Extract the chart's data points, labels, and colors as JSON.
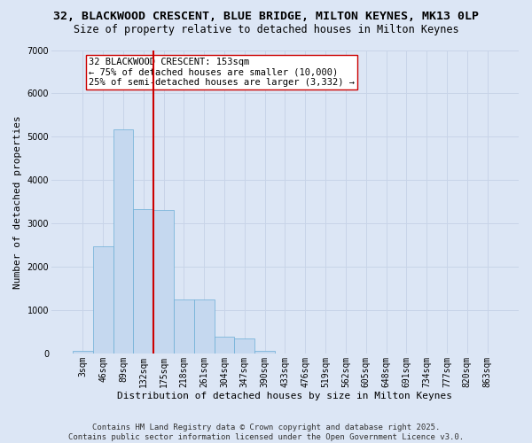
{
  "title_line1": "32, BLACKWOOD CRESCENT, BLUE BRIDGE, MILTON KEYNES, MK13 0LP",
  "title_line2": "Size of property relative to detached houses in Milton Keynes",
  "xlabel": "Distribution of detached houses by size in Milton Keynes",
  "ylabel": "Number of detached properties",
  "categories": [
    "3sqm",
    "46sqm",
    "89sqm",
    "132sqm",
    "175sqm",
    "218sqm",
    "261sqm",
    "304sqm",
    "347sqm",
    "390sqm",
    "433sqm",
    "476sqm",
    "519sqm",
    "562sqm",
    "605sqm",
    "648sqm",
    "691sqm",
    "734sqm",
    "777sqm",
    "820sqm",
    "863sqm"
  ],
  "values": [
    55,
    2480,
    5180,
    3340,
    3300,
    1250,
    1250,
    390,
    340,
    50,
    0,
    0,
    0,
    0,
    0,
    0,
    0,
    0,
    0,
    0,
    0
  ],
  "bar_color": "#c5d8ef",
  "bar_edge_color": "#6baed6",
  "grid_color": "#c8d4e8",
  "background_color": "#dce6f5",
  "vline_color": "#cc0000",
  "annotation_text": "32 BLACKWOOD CRESCENT: 153sqm\n← 75% of detached houses are smaller (10,000)\n25% of semi-detached houses are larger (3,332) →",
  "annotation_box_color": "#ffffff",
  "annotation_box_edge": "#cc0000",
  "ylim": [
    0,
    7000
  ],
  "yticks": [
    0,
    1000,
    2000,
    3000,
    4000,
    5000,
    6000,
    7000
  ],
  "footer_line1": "Contains HM Land Registry data © Crown copyright and database right 2025.",
  "footer_line2": "Contains public sector information licensed under the Open Government Licence v3.0.",
  "title_fontsize": 9.5,
  "subtitle_fontsize": 8.5,
  "axis_label_fontsize": 8,
  "tick_fontsize": 7,
  "annotation_fontsize": 7.5,
  "footer_fontsize": 6.5
}
